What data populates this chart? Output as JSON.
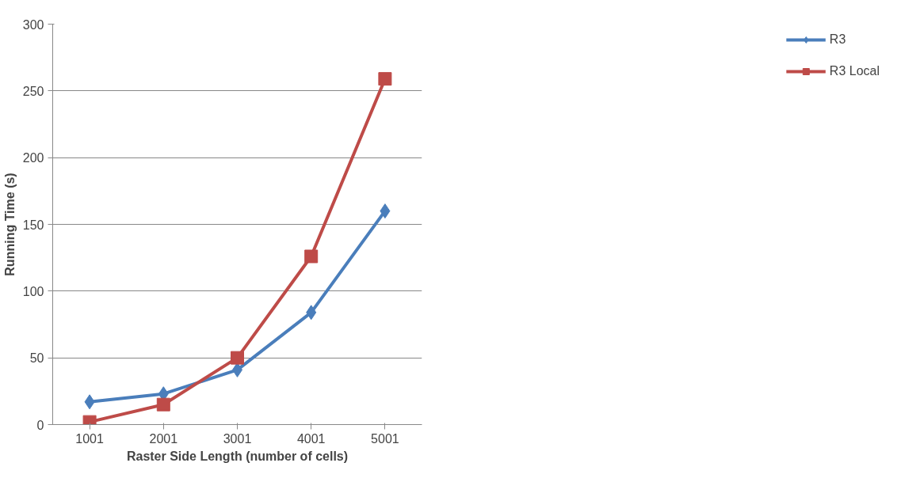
{
  "chart_data": {
    "type": "line",
    "xlabel": "Raster Side Length (number of cells)",
    "ylabel": "Running Time (s)",
    "categories": [
      "1001",
      "2001",
      "3001",
      "4001",
      "5001"
    ],
    "series": [
      {
        "name": "R3",
        "color": "#4a7ebb",
        "marker": "diamond",
        "values": [
          17,
          23,
          41,
          84,
          160
        ]
      },
      {
        "name": "R3 Local",
        "color": "#be4b48",
        "marker": "square",
        "values": [
          2,
          15,
          50,
          126,
          259
        ]
      }
    ],
    "ylim": [
      0,
      300
    ],
    "yticks": [
      0,
      50,
      100,
      150,
      200,
      250,
      300
    ],
    "grid": "y",
    "legend": "right",
    "line_style": "solid"
  }
}
